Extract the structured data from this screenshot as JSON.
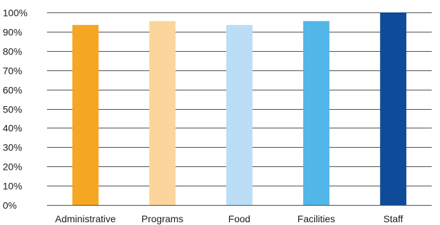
{
  "chart_data": {
    "type": "bar",
    "categories": [
      "Administrative",
      "Programs",
      "Food",
      "Facilities",
      "Staff"
    ],
    "values": [
      93.5,
      95.5,
      93.5,
      95.5,
      100
    ],
    "ylim": [
      0,
      100
    ],
    "yticks": [
      0,
      10,
      20,
      30,
      40,
      50,
      60,
      70,
      80,
      90,
      100
    ],
    "ytick_labels": [
      "0%",
      "10%",
      "20%",
      "30%",
      "40%",
      "50%",
      "60%",
      "70%",
      "80%",
      "90%",
      "100%"
    ],
    "grid": true,
    "bar_colors": [
      "#F5A623",
      "#FBD59B",
      "#BBDDF5",
      "#53B6E8",
      "#0E4B99"
    ],
    "gridline_color": "#4D4D4D"
  }
}
